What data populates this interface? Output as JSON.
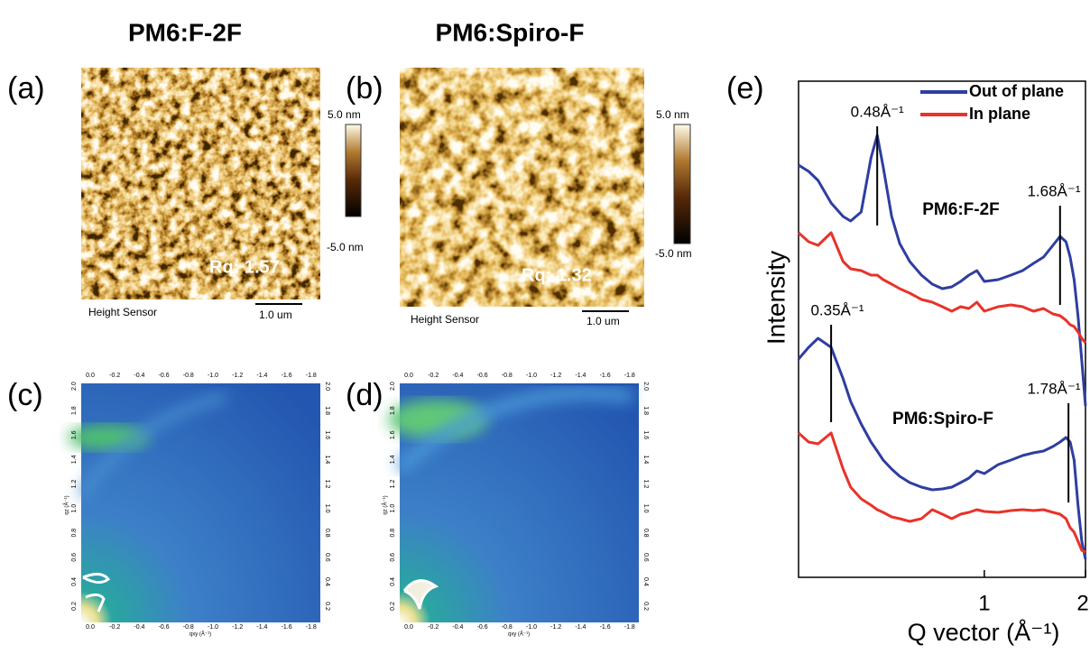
{
  "columns": {
    "left": "PM6:F-2F",
    "right": "PM6:Spiro-F"
  },
  "afm": [
    {
      "label": "(a)",
      "rq": "Rq:  1.57",
      "scale_max": "5.0 nm",
      "scale_min": "-5.0 nm",
      "sensor": "Height Sensor",
      "scalebar": "1.0 um"
    },
    {
      "label": "(b)",
      "rq": "Rq:  1.32",
      "scale_max": "5.0 nm",
      "scale_min": "-5.0 nm",
      "sensor": "Height Sensor",
      "scalebar": "1.0 um"
    }
  ],
  "giwaxs": [
    {
      "label": "(c)"
    },
    {
      "label": "(d)"
    }
  ],
  "giwaxs_axes": {
    "qxy_ticks": [
      "0.0",
      "-0.2",
      "-0.4",
      "-0.6",
      "-0.8",
      "-1.0",
      "-1.2",
      "-1.4",
      "-1.6",
      "-1.8"
    ],
    "qz_ticks": [
      "0.2",
      "0.4",
      "0.6",
      "0.8",
      "1.0",
      "1.2",
      "1.4",
      "1.6",
      "1.8",
      "2.0"
    ],
    "qxy_label": "qxy (Å⁻¹)",
    "qz_label": "qz (Å⁻¹)"
  },
  "chart_data": {
    "type": "line",
    "label": "(e)",
    "x_label": "Q vector (Å⁻¹)",
    "y_label": "Intensity",
    "xscale": "log",
    "xlim": [
      0.28,
      2
    ],
    "xticks": [
      1,
      2
    ],
    "ylim": [
      0,
      550
    ],
    "x": [
      0.28,
      0.3,
      0.32,
      0.35,
      0.38,
      0.4,
      0.43,
      0.46,
      0.48,
      0.5,
      0.53,
      0.56,
      0.6,
      0.65,
      0.7,
      0.75,
      0.8,
      0.85,
      0.9,
      0.95,
      1.0,
      1.1,
      1.2,
      1.3,
      1.4,
      1.5,
      1.6,
      1.68,
      1.75,
      1.8,
      1.85,
      1.9,
      1.95,
      2.0
    ],
    "series": [
      {
        "name": "Out of plane",
        "color": "#2e3ea0",
        "values": [
          457,
          450,
          440,
          415,
          400,
          395,
          405,
          465,
          490,
          455,
          400,
          370,
          350,
          335,
          325,
          320,
          322,
          328,
          335,
          340,
          328,
          330,
          335,
          340,
          348,
          355,
          368,
          378,
          372,
          355,
          330,
          290,
          240,
          190
        ]
      },
      {
        "name": "In plane",
        "color": "#e8332a",
        "values": [
          382,
          372,
          368,
          382,
          350,
          342,
          340,
          335,
          335,
          330,
          325,
          320,
          315,
          308,
          305,
          300,
          295,
          300,
          298,
          305,
          295,
          300,
          302,
          300,
          295,
          298,
          292,
          290,
          285,
          280,
          278,
          272,
          265,
          260
        ]
      },
      {
        "color": "#2e3ea0",
        "values": [
          242,
          255,
          265,
          255,
          220,
          195,
          170,
          150,
          140,
          130,
          120,
          112,
          105,
          100,
          97,
          98,
          100,
          105,
          110,
          118,
          115,
          125,
          130,
          135,
          138,
          140,
          145,
          150,
          155,
          150,
          130,
          80,
          40,
          20
        ]
      },
      {
        "color": "#e8332a",
        "values": [
          160,
          150,
          148,
          160,
          120,
          100,
          87,
          80,
          75,
          72,
          67,
          65,
          62,
          65,
          75,
          70,
          65,
          70,
          72,
          75,
          73,
          72,
          74,
          75,
          74,
          75,
          72,
          70,
          65,
          55,
          50,
          40,
          30,
          28
        ]
      }
    ],
    "annotations": [
      {
        "text": "0.48Å⁻¹",
        "x": 0.48
      },
      {
        "text": "1.68Å⁻¹",
        "x": 1.68
      },
      {
        "text": "0.35Å⁻¹",
        "x": 0.35
      },
      {
        "text": "1.78Å⁻¹",
        "x": 1.78
      }
    ],
    "sample_labels": [
      "PM6:F-2F",
      "PM6:Spiro-F"
    ]
  }
}
